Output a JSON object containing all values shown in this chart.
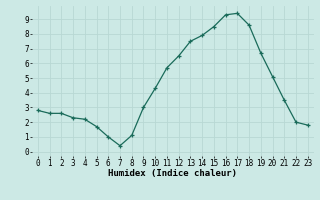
{
  "x": [
    0,
    1,
    2,
    3,
    4,
    5,
    6,
    7,
    8,
    9,
    10,
    11,
    12,
    13,
    14,
    15,
    16,
    17,
    18,
    19,
    20,
    21,
    22,
    23
  ],
  "y": [
    2.8,
    2.6,
    2.6,
    2.3,
    2.2,
    1.7,
    1.0,
    0.4,
    1.1,
    3.0,
    4.3,
    5.7,
    6.5,
    7.5,
    7.9,
    8.5,
    9.3,
    9.4,
    8.6,
    6.7,
    5.1,
    3.5,
    2.0,
    1.8
  ],
  "line_color": "#1a6b5a",
  "marker": "+",
  "marker_size": 3,
  "bg_color": "#cce9e5",
  "grid_color": "#b8d8d4",
  "xlabel": "Humidex (Indice chaleur)",
  "xlim": [
    -0.5,
    23.5
  ],
  "ylim": [
    -0.3,
    9.9
  ],
  "xticks": [
    0,
    1,
    2,
    3,
    4,
    5,
    6,
    7,
    8,
    9,
    10,
    11,
    12,
    13,
    14,
    15,
    16,
    17,
    18,
    19,
    20,
    21,
    22,
    23
  ],
  "yticks": [
    0,
    1,
    2,
    3,
    4,
    5,
    6,
    7,
    8,
    9
  ],
  "label_fontsize": 6.5,
  "tick_fontsize": 5.5
}
